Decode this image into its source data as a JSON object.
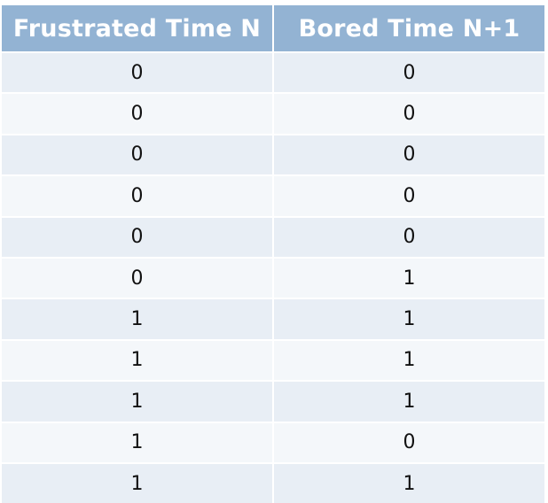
{
  "table": {
    "headers": [
      "Frustrated Time N",
      "Bored Time N+1"
    ],
    "rows": [
      [
        "0",
        "0"
      ],
      [
        "0",
        "0"
      ],
      [
        "0",
        "0"
      ],
      [
        "0",
        "0"
      ],
      [
        "0",
        "0"
      ],
      [
        "0",
        "1"
      ],
      [
        "1",
        "1"
      ],
      [
        "1",
        "1"
      ],
      [
        "1",
        "1"
      ],
      [
        "1",
        "0"
      ],
      [
        "1",
        "1"
      ]
    ]
  },
  "colors": {
    "header_bg": "#93b3d3",
    "row_dark": "#e8eef5",
    "row_light": "#f4f7fa"
  }
}
